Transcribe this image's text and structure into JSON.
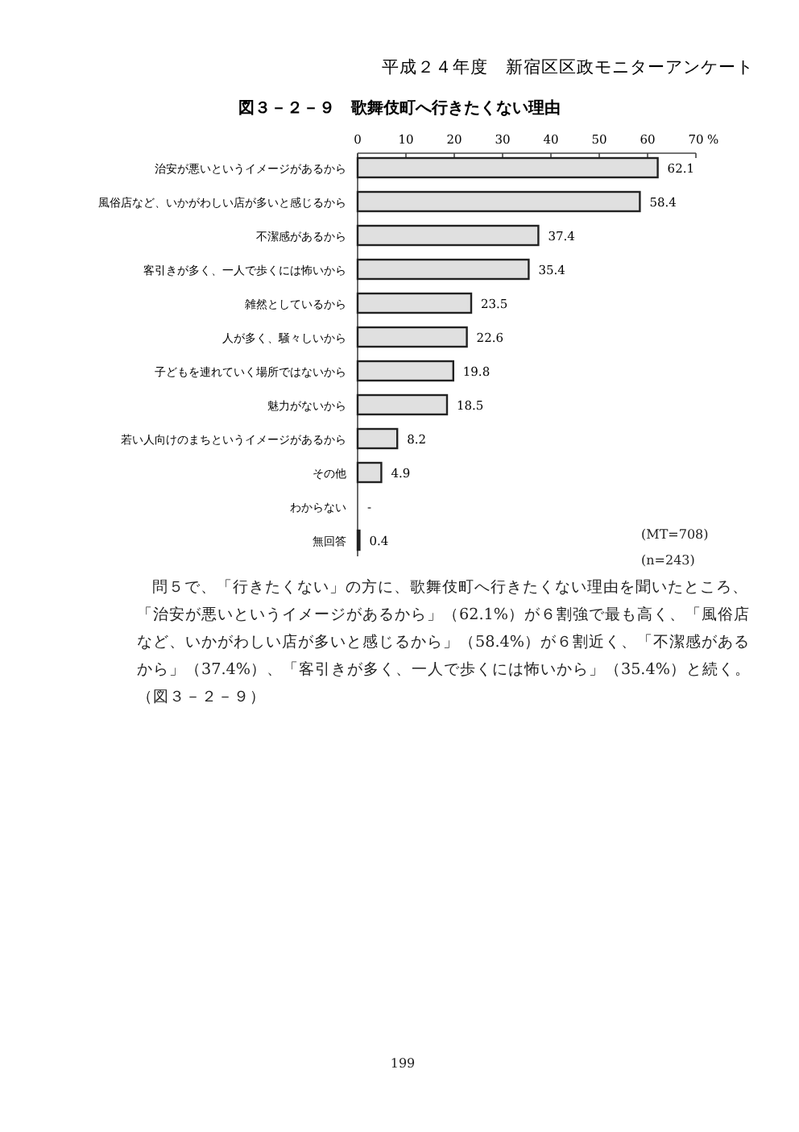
{
  "chart_data": {
    "type": "bar",
    "orientation": "horizontal",
    "title": "図３－２－９　歌舞伎町へ行きたくない理由",
    "subtitle": "平成２４年度　新宿区区政モニターアンケート",
    "xlabel": "%",
    "categories": [
      "治安が悪いというイメージがあるから",
      "風俗店など、いかがわしい店が多いと感じるから",
      "不潔感があるから",
      "客引きが多く、一人で歩くには怖いから",
      "雑然としているから",
      "人が多く、騒々しいから",
      "子どもを連れていく場所ではないから",
      "魅力がないから",
      "若い人向けのまちというイメージがあるから",
      "その他",
      "わからない",
      "無回答"
    ],
    "values": [
      62.1,
      58.4,
      37.4,
      35.4,
      23.5,
      22.6,
      19.8,
      18.5,
      8.2,
      4.9,
      null,
      0.4
    ],
    "value_labels": [
      "62.1",
      "58.4",
      "37.4",
      "35.4",
      "23.5",
      "22.6",
      "19.8",
      "18.5",
      "8.2",
      "4.9",
      "-",
      "0.4"
    ],
    "color": "#e0e0e0",
    "xlim": [
      0,
      70
    ],
    "xticks": [
      0,
      10,
      20,
      30,
      40,
      50,
      60,
      70
    ],
    "grid": false,
    "annotations": [
      "(MT=708)",
      "(n=243)",
      "問５で、「行きたくない」の方に、歌舞伎町へ行きたくない理由を聞いたところ、「治安が悪いというイメージがあるから」（62.1%）が６割強で最も高く、「風俗店など、いかがわしい店が多いと感じるから」（58.4%）が６割近く、「不潔感があるから」（37.4%）、「客引きが多く、一人で歩くには怖いから」（35.4%）と続く。（図３－２－９）",
      "199"
    ]
  }
}
